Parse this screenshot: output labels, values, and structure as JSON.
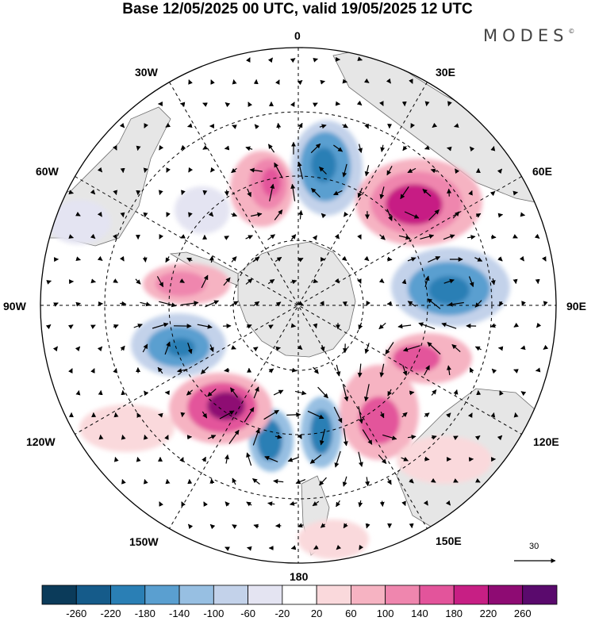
{
  "title": "Base 12/05/2025 00 UTC, valid 19/05/2025 12 UTC",
  "brand": "MODES",
  "brand_mark": "©",
  "longitude_labels": {
    "lon0": "0",
    "lon30e": "30E",
    "lon60e": "60E",
    "lon90e": "90E",
    "lon120e": "120E",
    "lon150e": "150E",
    "lon180": "180",
    "lon150w": "150W",
    "lon120w": "120W",
    "lon90w": "90W",
    "lon60w": "60W",
    "lon30w": "30W"
  },
  "reference_vector": "30",
  "colorbar": {
    "colors": [
      "#0b3b5a",
      "#155b8a",
      "#2a7fb5",
      "#5a9fd0",
      "#97bfe2",
      "#c3d2ea",
      "#e4e4f2",
      "#ffffff",
      "#fad9dc",
      "#f6b3c2",
      "#ef86ae",
      "#e3549b",
      "#c71f84",
      "#8e0b73",
      "#5a0a6d"
    ],
    "ticks": [
      "-260",
      "-220",
      "-180",
      "-140",
      "-100",
      "-60",
      "-20",
      "20",
      "60",
      "100",
      "140",
      "180",
      "220",
      "260"
    ]
  },
  "colors": {
    "land": "#e6e6e6",
    "coast": "#6e6e6e",
    "grid": "#000000"
  }
}
